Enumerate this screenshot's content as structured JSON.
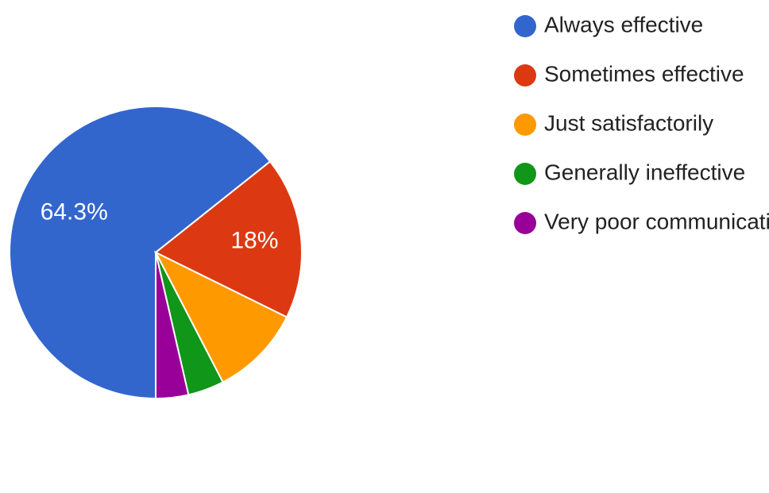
{
  "chart_data": {
    "type": "pie",
    "title": "",
    "categories": [
      "Always effective",
      "Sometimes effective",
      "Just satisfactorily",
      "Generally ineffective",
      "Very poor communication"
    ],
    "values": [
      64.3,
      18,
      10.1,
      4,
      3.6
    ],
    "colors": [
      "#3366cc",
      "#dc3912",
      "#ff9900",
      "#109618",
      "#990099"
    ],
    "data_labels": [
      "64.3%",
      "18%",
      "",
      "",
      ""
    ],
    "start_angle_deg": 90,
    "direction": "clockwise-from-right",
    "legend_position": "right"
  }
}
